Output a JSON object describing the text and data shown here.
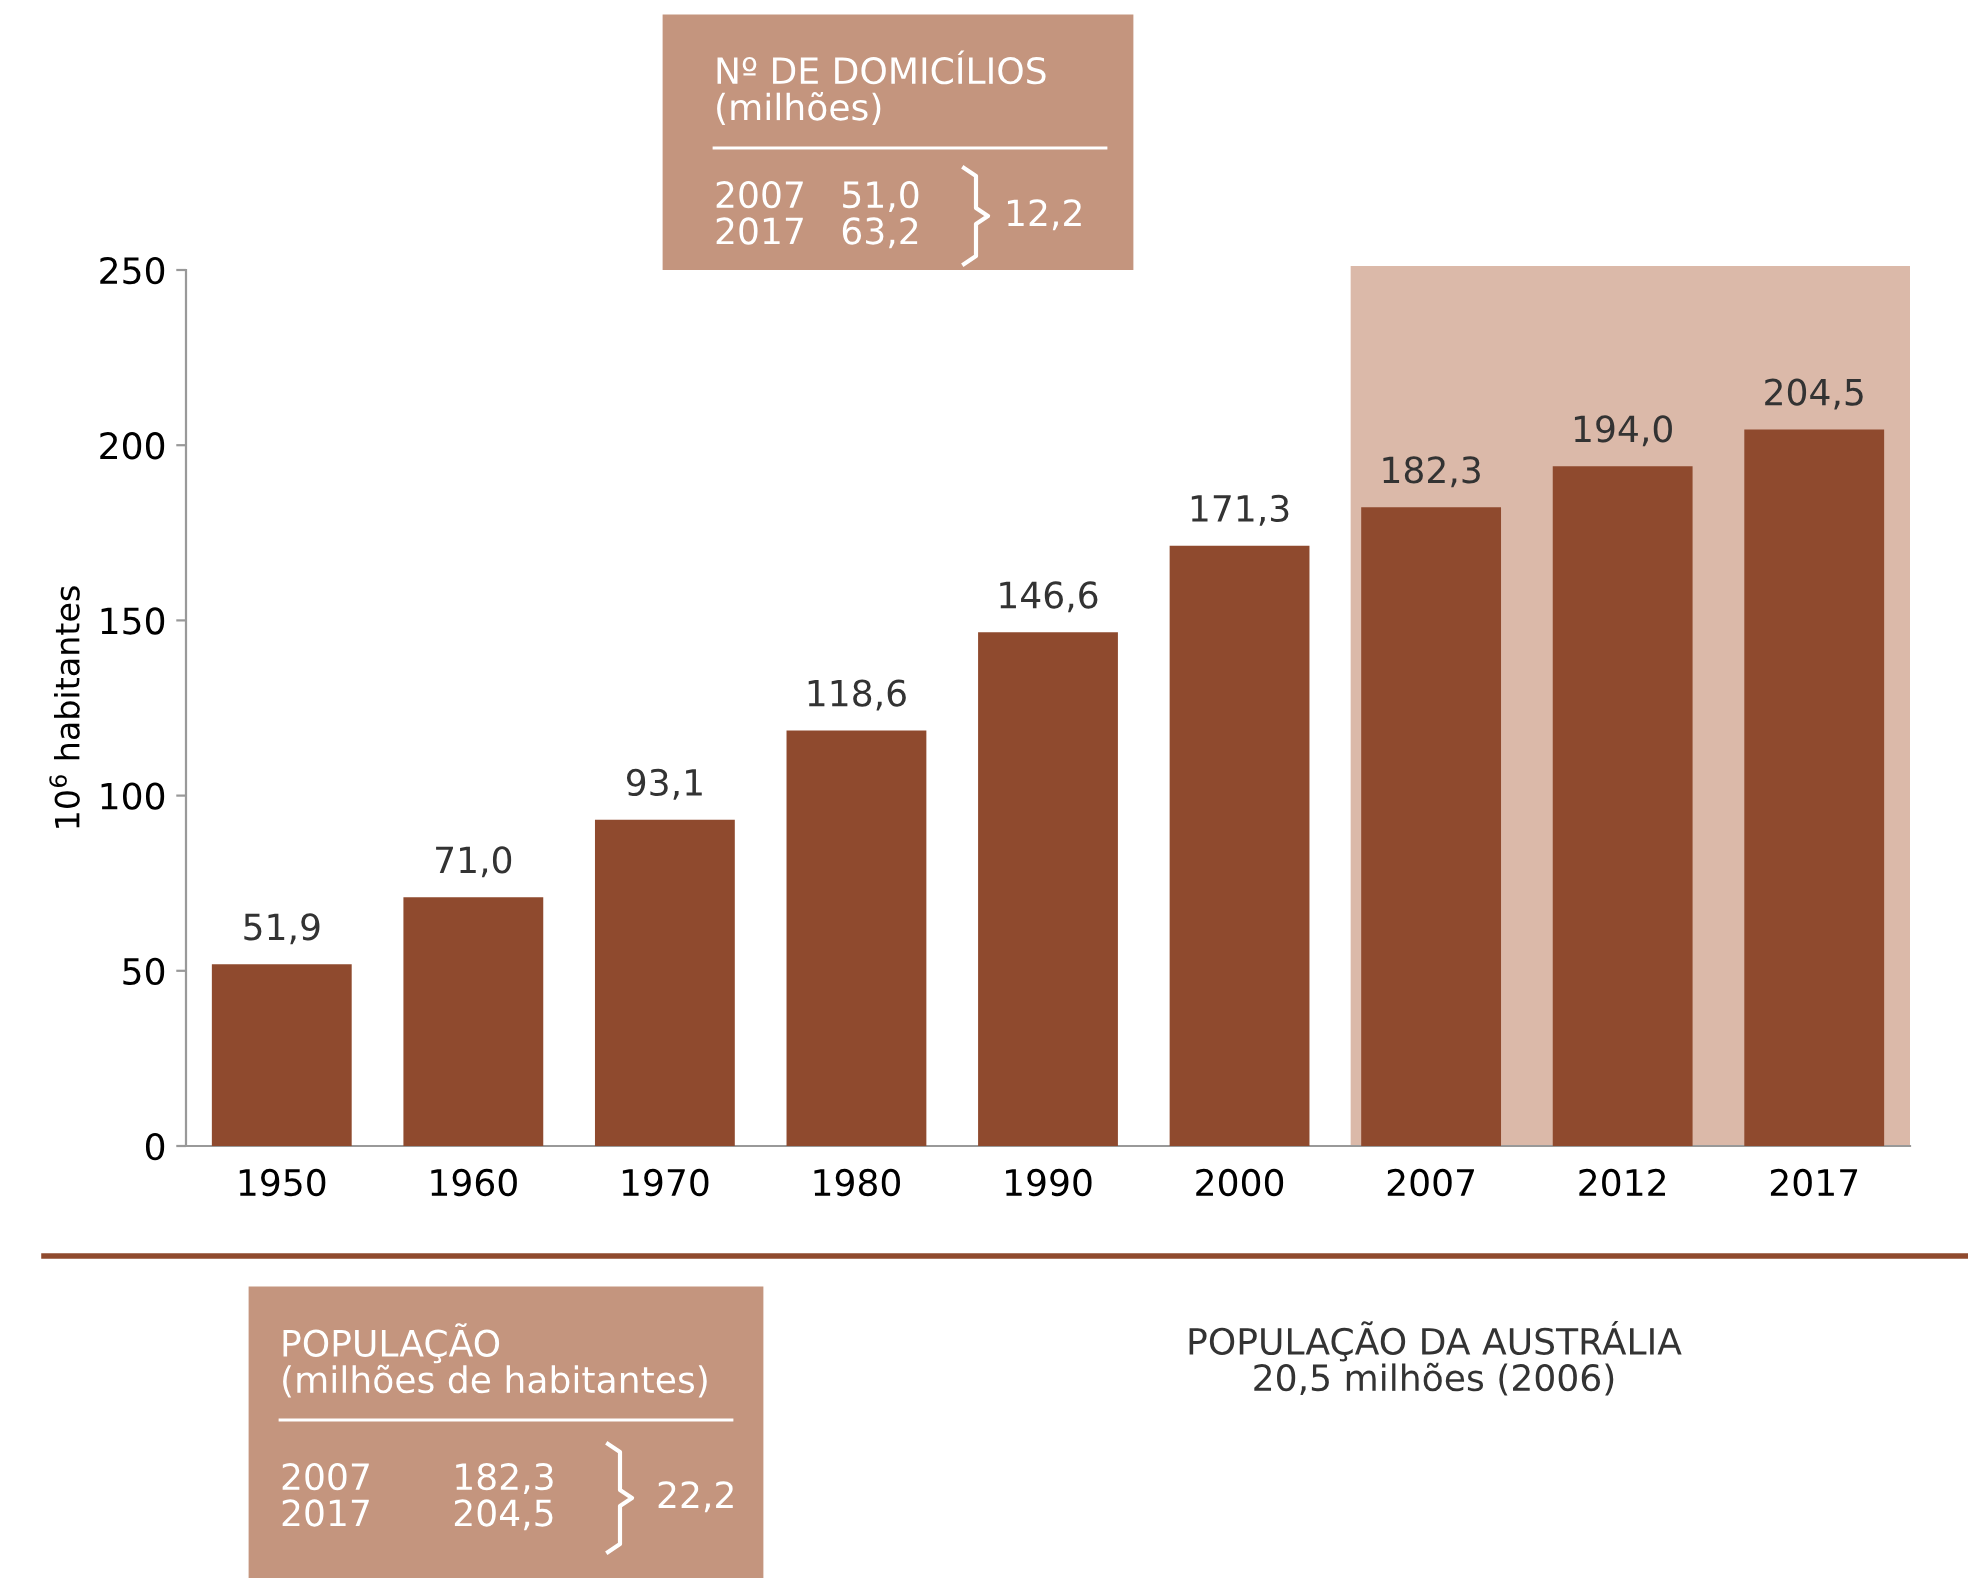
{
  "chart_data": {
    "type": "bar",
    "ylabel": "10$^{6}$ habitantes",
    "categories": [
      "1950",
      "1960",
      "1970",
      "1980",
      "1990",
      "2000",
      "2007",
      "2012",
      "2017"
    ],
    "values": [
      51.9,
      71.0,
      93.1,
      118.6,
      146.6,
      171.3,
      182.3,
      194.0,
      204.5
    ],
    "value_labels": [
      "51,9",
      "71,0",
      "93,1",
      "118,6",
      "146,6",
      "171,3",
      "182,3",
      "194,0",
      "204,5"
    ],
    "color": "#8f4a2e",
    "ylim": [
      0,
      250
    ],
    "yticks": [
      0,
      50,
      100,
      150,
      200,
      250
    ],
    "bands": [
      {
        "axis": "x",
        "from": "2007",
        "to": "2017",
        "color": "#dbb9a9"
      }
    ],
    "annotations": [
      "Nº DE DOMICÍLIOS\n(milhões)",
      "2007   51,0\n2017   63,2",
      "12,2",
      "POPULAÇÃO\n(milhões de habitantes)",
      "2007       182,3\n2017       204,5",
      "22,2",
      "POPULAÇÃO DA AUSTRÁLIA\n20,5 milhões (2006)"
    ]
  }
}
